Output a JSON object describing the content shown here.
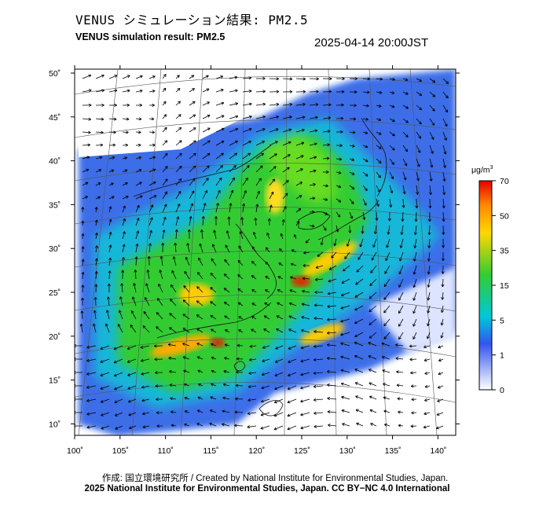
{
  "title_jp": "VENUS シミュレーション結果: PM2.5",
  "title_en": "VENUS simulation result: PM2.5",
  "timestamp": "2025-04-14 20:00JST",
  "map": {
    "lat_ticks": [
      "50˚",
      "45˚",
      "40˚",
      "35˚",
      "30˚",
      "25˚",
      "20˚",
      "15˚",
      "10˚"
    ],
    "lon_ticks": [
      "100˚",
      "105˚",
      "110˚",
      "115˚",
      "120˚",
      "125˚",
      "130˚",
      "135˚",
      "140˚"
    ]
  },
  "legend": {
    "unit": "μg/m",
    "unit_sup": "3",
    "labels": [
      "70",
      "50",
      "35",
      "15",
      "5",
      "1",
      "0"
    ],
    "colors": [
      "#e60000",
      "#ff8c00",
      "#ffd700",
      "#33cc33",
      "#00cccc",
      "#3366ff",
      "#ffffff"
    ]
  },
  "footer": {
    "credit": "作成: 国立環境研究所 / Created by National Institute for Environmental Studies, Japan.",
    "copyright": "2025 National Institute for Environmental Studies, Japan. CC BY−NC 4.0 International"
  }
}
